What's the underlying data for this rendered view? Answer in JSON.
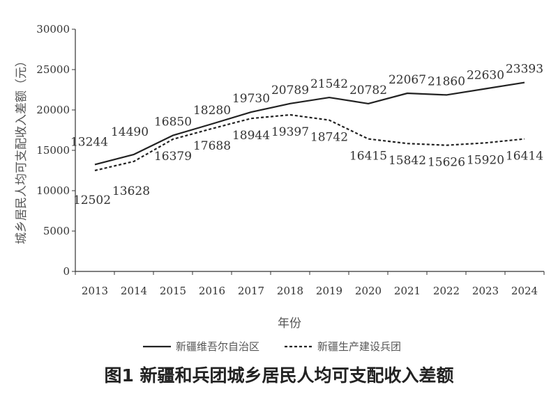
{
  "chart_data": {
    "type": "line",
    "categories": [
      "2013",
      "2014",
      "2015",
      "2016",
      "2017",
      "2018",
      "2019",
      "2020",
      "2021",
      "2022",
      "2023",
      "2024"
    ],
    "series": [
      {
        "name": "新疆维吾尔自治区",
        "style": "solid",
        "values": [
          13244,
          14490,
          16850,
          18280,
          19730,
          20789,
          21542,
          20782,
          22067,
          21860,
          22630,
          23393
        ]
      },
      {
        "name": "新疆生产建设兵团",
        "style": "dashed",
        "values": [
          12502,
          13628,
          16379,
          17688,
          18944,
          19397,
          18742,
          16415,
          15842,
          15626,
          15920,
          16414
        ]
      }
    ],
    "ylim": [
      0,
      30000
    ],
    "yticks": [
      "0",
      "5000",
      "10000",
      "15000",
      "20000",
      "25000",
      "30000"
    ],
    "xlabel": "年份",
    "ylabel": "城乡居民人均可支配收入差额（元）",
    "legend": "bottom",
    "grid": false,
    "colors": {
      "line": "#222222",
      "axis": "#333333"
    }
  },
  "caption": "图1  新疆和兵团城乡居民人均可支配收入差额"
}
